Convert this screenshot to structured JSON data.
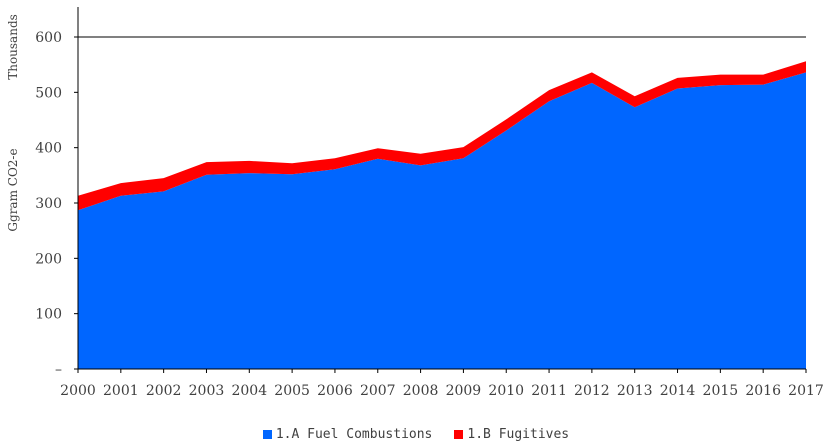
{
  "chart_data": {
    "type": "area",
    "stacked": true,
    "x": [
      "2000",
      "2001",
      "2002",
      "2003",
      "2004",
      "2005",
      "2006",
      "2007",
      "2008",
      "2009",
      "2010",
      "2011",
      "2012",
      "2013",
      "2014",
      "2015",
      "2016",
      "2017"
    ],
    "series": [
      {
        "name": "1.A Fuel Combustions",
        "color": "#0066ff",
        "values": [
          287,
          313,
          321,
          351,
          354,
          352,
          361,
          380,
          368,
          381,
          431,
          484,
          517,
          473,
          507,
          513,
          514,
          536
        ]
      },
      {
        "name": "1.B Fugitives",
        "color": "#ff0000",
        "values": [
          26,
          23,
          24,
          23,
          22,
          20,
          20,
          19,
          21,
          20,
          20,
          20,
          19,
          20,
          19,
          19,
          18,
          20
        ]
      }
    ],
    "ylim": [
      0,
      600
    ],
    "yticks": [
      0,
      100,
      200,
      300,
      400,
      500,
      600
    ],
    "ytick_labels": [
      "–",
      "100",
      "200",
      "300",
      "400",
      "500",
      "600"
    ],
    "ylabel": "Ggram CO2-e",
    "yunit_label": "Thousands",
    "xlabel": "",
    "title": "",
    "grid": "top line only",
    "legend_position": "bottom-center"
  }
}
